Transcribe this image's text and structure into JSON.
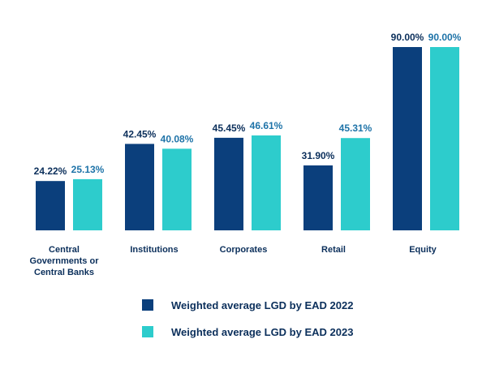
{
  "chart_data": {
    "type": "bar",
    "categories": [
      "Central Governments or Central Banks",
      "Institutions",
      "Corporates",
      "Retail",
      "Equity"
    ],
    "series": [
      {
        "name": "Weighted average LGD by EAD 2022",
        "values": [
          24.22,
          42.45,
          45.45,
          31.9,
          90.0
        ],
        "labels": [
          "24.22%",
          "42.45%",
          "45.45%",
          "31.90%",
          "90.00%"
        ]
      },
      {
        "name": "Weighted average LGD by EAD 2023",
        "values": [
          25.13,
          40.08,
          46.61,
          45.31,
          90.0
        ],
        "labels": [
          "25.13%",
          "40.08%",
          "46.61%",
          "45.31%",
          "90.00%"
        ]
      }
    ],
    "ylim": [
      0,
      100
    ],
    "title": "",
    "xlabel": "",
    "ylabel": "",
    "grid": false,
    "legend_position": "bottom"
  },
  "colors": {
    "series_2022": "#0b3f7c",
    "series_2023": "#2dcccc",
    "label_2022": "#0b2f5b",
    "label_2023": "#1e73a8"
  },
  "legend": {
    "item_2022": "Weighted average LGD by EAD 2022",
    "item_2023": "Weighted average LGD by EAD 2023"
  }
}
